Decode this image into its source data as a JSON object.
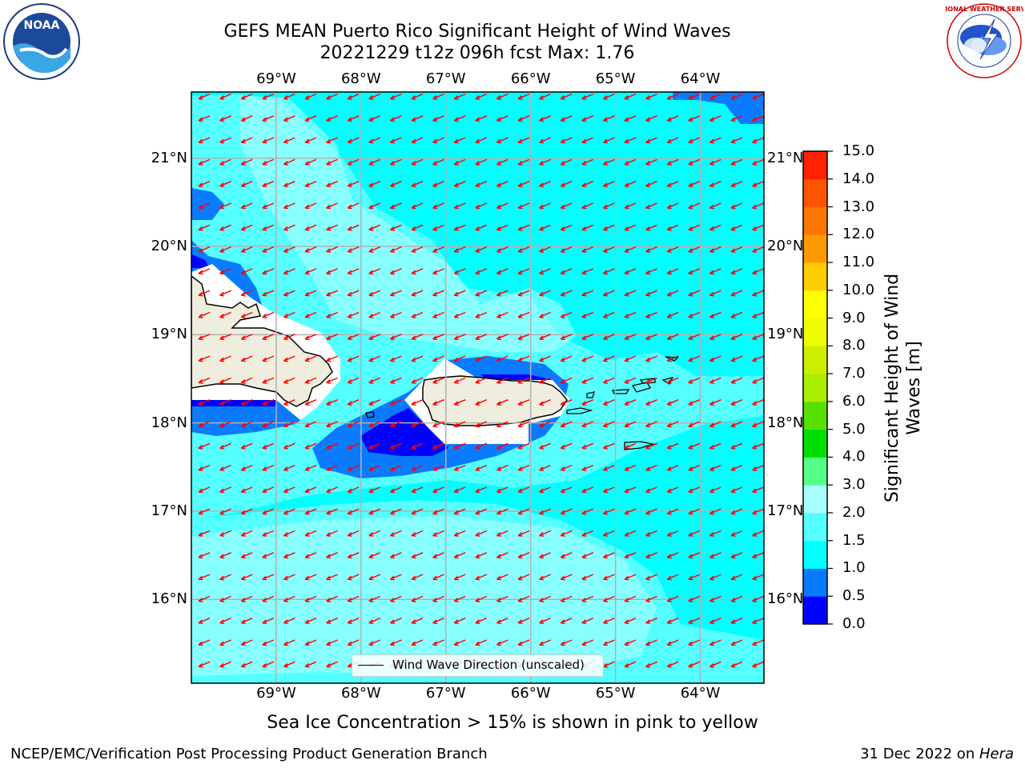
{
  "title": {
    "line1": "GEFS MEAN Puerto Rico Significant Height of Wind Waves",
    "line2": "20221229 t12z 096h fcst   Max: 1.76"
  },
  "map": {
    "lon_range": [
      -70,
      -63.25
    ],
    "lat_range": [
      15.05,
      21.75
    ],
    "lon_ticks": [
      "69°W",
      "68°W",
      "67°W",
      "66°W",
      "65°W",
      "64°W"
    ],
    "lat_ticks": [
      "16°N",
      "17°N",
      "18°N",
      "19°N",
      "20°N",
      "21°N"
    ],
    "arrow_color": "#ff0000",
    "land_color": "#efedde",
    "legend_label": "Wind Wave Direction (unscaled)",
    "note": "Sea Ice Concentration > 15% is shown in pink to yellow"
  },
  "colorbar": {
    "label": "Significant Height of Wind Waves [m]",
    "label_lines": [
      "Significant Height of Wind",
      "Waves [m]"
    ],
    "ticks": [
      "0.0",
      "0.5",
      "1.0",
      "1.5",
      "2.0",
      "3.0",
      "4.0",
      "5.0",
      "6.0",
      "7.0",
      "8.0",
      "9.0",
      "10.0",
      "11.0",
      "12.0",
      "13.0",
      "14.0",
      "15.0"
    ],
    "colors": [
      "#0000ff",
      "#0a7bff",
      "#00ffff",
      "#55ffff",
      "#aaffff",
      "#55ff88",
      "#00e000",
      "#55e000",
      "#aaee00",
      "#ccee00",
      "#eeff00",
      "#ffff00",
      "#ffcc00",
      "#ff9900",
      "#ff7700",
      "#ff5500",
      "#ff2200"
    ]
  },
  "footer": {
    "left": "NCEP/EMC/Verification Post Processing Product Generation Branch",
    "right_prefix": "31 Dec 2022 on ",
    "right_host": "Hera"
  },
  "logos": {
    "noaa": "NOAA",
    "nws": "NATIONAL WEATHER SERVICE"
  }
}
